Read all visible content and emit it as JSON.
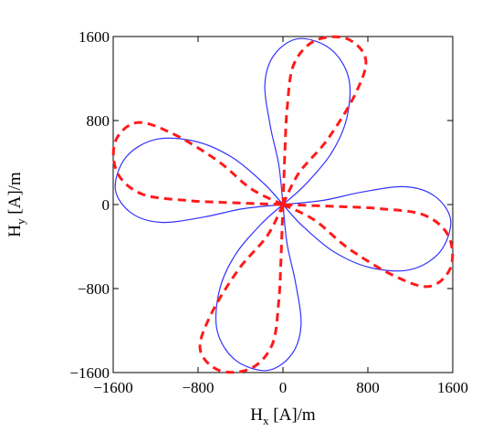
{
  "chart_data": {
    "type": "line",
    "xlabel_main": "H",
    "xlabel_sub": "x",
    "xlabel_unit": " [A]/m",
    "ylabel_main": "H",
    "ylabel_sub": "y",
    "ylabel_unit": " [A]/m",
    "xlim": [
      -1600,
      1600
    ],
    "ylim": [
      -1600,
      1600
    ],
    "xticks": [
      -1600,
      -800,
      0,
      800,
      1600
    ],
    "yticks": [
      -1600,
      -800,
      0,
      800,
      1600
    ],
    "xtick_labels": [
      "−1600",
      "−800",
      "0",
      "800",
      "1600"
    ],
    "ytick_labels": [
      "−1600",
      "−800",
      "0",
      "800",
      "1600"
    ],
    "grid": false,
    "series": [
      {
        "style": "solid",
        "color": "#3333ff",
        "loops": [
          [
            [
              0,
              0
            ],
            [
              -40,
              380
            ],
            [
              -120,
              750
            ],
            [
              -170,
              1150
            ],
            [
              -80,
              1430
            ],
            [
              150,
              1580
            ],
            [
              450,
              1480
            ],
            [
              620,
              1200
            ],
            [
              600,
              820
            ],
            [
              450,
              480
            ],
            [
              200,
              180
            ],
            [
              0,
              0
            ]
          ],
          [
            [
              0,
              0
            ],
            [
              380,
              40
            ],
            [
              750,
              120
            ],
            [
              1150,
              170
            ],
            [
              1430,
              80
            ],
            [
              1580,
              -150
            ],
            [
              1480,
              -450
            ],
            [
              1200,
              -620
            ],
            [
              820,
              -600
            ],
            [
              480,
              -450
            ],
            [
              180,
              -200
            ],
            [
              0,
              0
            ]
          ],
          [
            [
              0,
              0
            ],
            [
              40,
              -380
            ],
            [
              120,
              -750
            ],
            [
              170,
              -1150
            ],
            [
              80,
              -1430
            ],
            [
              -150,
              -1580
            ],
            [
              -450,
              -1480
            ],
            [
              -620,
              -1200
            ],
            [
              -600,
              -820
            ],
            [
              -450,
              -480
            ],
            [
              -200,
              -180
            ],
            [
              0,
              0
            ]
          ],
          [
            [
              0,
              0
            ],
            [
              -380,
              -40
            ],
            [
              -750,
              -120
            ],
            [
              -1150,
              -170
            ],
            [
              -1430,
              -80
            ],
            [
              -1580,
              150
            ],
            [
              -1480,
              450
            ],
            [
              -1200,
              620
            ],
            [
              -820,
              600
            ],
            [
              -480,
              450
            ],
            [
              -180,
              200
            ],
            [
              0,
              0
            ]
          ]
        ]
      },
      {
        "style": "dashed",
        "color": "#ff1a1a",
        "loops": [
          [
            [
              0,
              0
            ],
            [
              150,
              300
            ],
            [
              420,
              620
            ],
            [
              680,
              1050
            ],
            [
              780,
              1380
            ],
            [
              600,
              1580
            ],
            [
              300,
              1560
            ],
            [
              100,
              1330
            ],
            [
              40,
              920
            ],
            [
              20,
              550
            ],
            [
              0,
              0
            ]
          ],
          [
            [
              0,
              0
            ],
            [
              300,
              -150
            ],
            [
              620,
              -420
            ],
            [
              1050,
              -680
            ],
            [
              1380,
              -780
            ],
            [
              1580,
              -600
            ],
            [
              1560,
              -300
            ],
            [
              1330,
              -100
            ],
            [
              920,
              -40
            ],
            [
              550,
              -20
            ],
            [
              0,
              0
            ]
          ],
          [
            [
              0,
              0
            ],
            [
              -150,
              -300
            ],
            [
              -420,
              -620
            ],
            [
              -680,
              -1050
            ],
            [
              -780,
              -1380
            ],
            [
              -600,
              -1580
            ],
            [
              -300,
              -1560
            ],
            [
              -100,
              -1330
            ],
            [
              -40,
              -920
            ],
            [
              -20,
              -550
            ],
            [
              0,
              0
            ]
          ],
          [
            [
              0,
              0
            ],
            [
              -300,
              150
            ],
            [
              -620,
              420
            ],
            [
              -1050,
              680
            ],
            [
              -1380,
              780
            ],
            [
              -1580,
              600
            ],
            [
              -1560,
              300
            ],
            [
              -1330,
              100
            ],
            [
              -920,
              40
            ],
            [
              -550,
              20
            ],
            [
              0,
              0
            ]
          ]
        ]
      }
    ]
  }
}
